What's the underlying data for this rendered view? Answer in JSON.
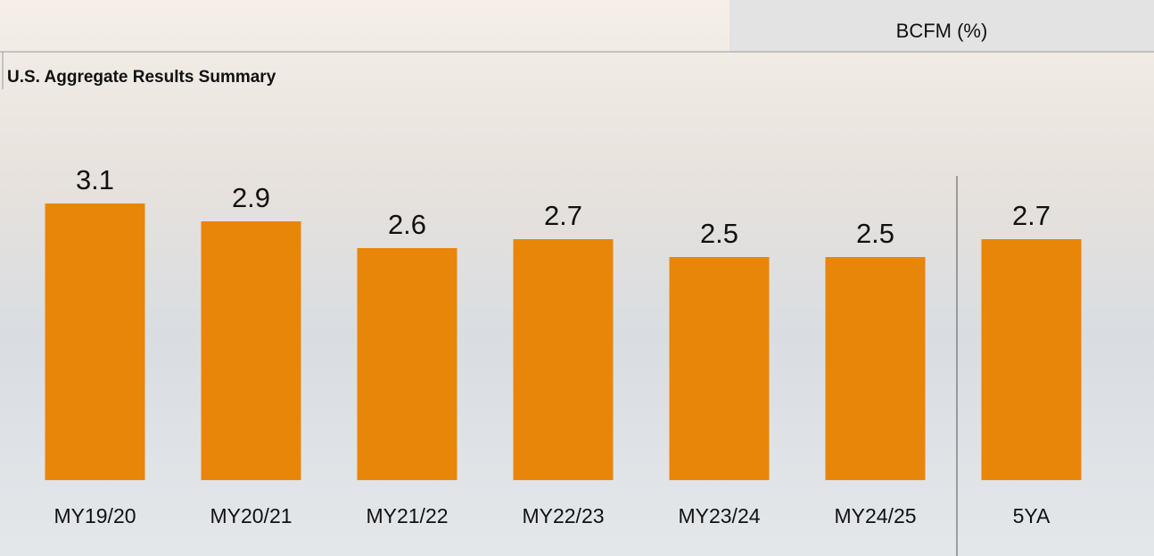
{
  "chart_data": {
    "type": "bar",
    "title": "U.S. Aggregate Results Summary",
    "header": "BCFM (%)",
    "categories": [
      "MY19/20",
      "MY20/21",
      "MY21/22",
      "MY22/23",
      "MY23/24",
      "MY24/25",
      "5YA"
    ],
    "values": [
      3.1,
      2.9,
      2.6,
      2.7,
      2.5,
      2.5,
      2.7
    ],
    "color": "#e8860a",
    "ylim": [
      0,
      3.1
    ]
  }
}
